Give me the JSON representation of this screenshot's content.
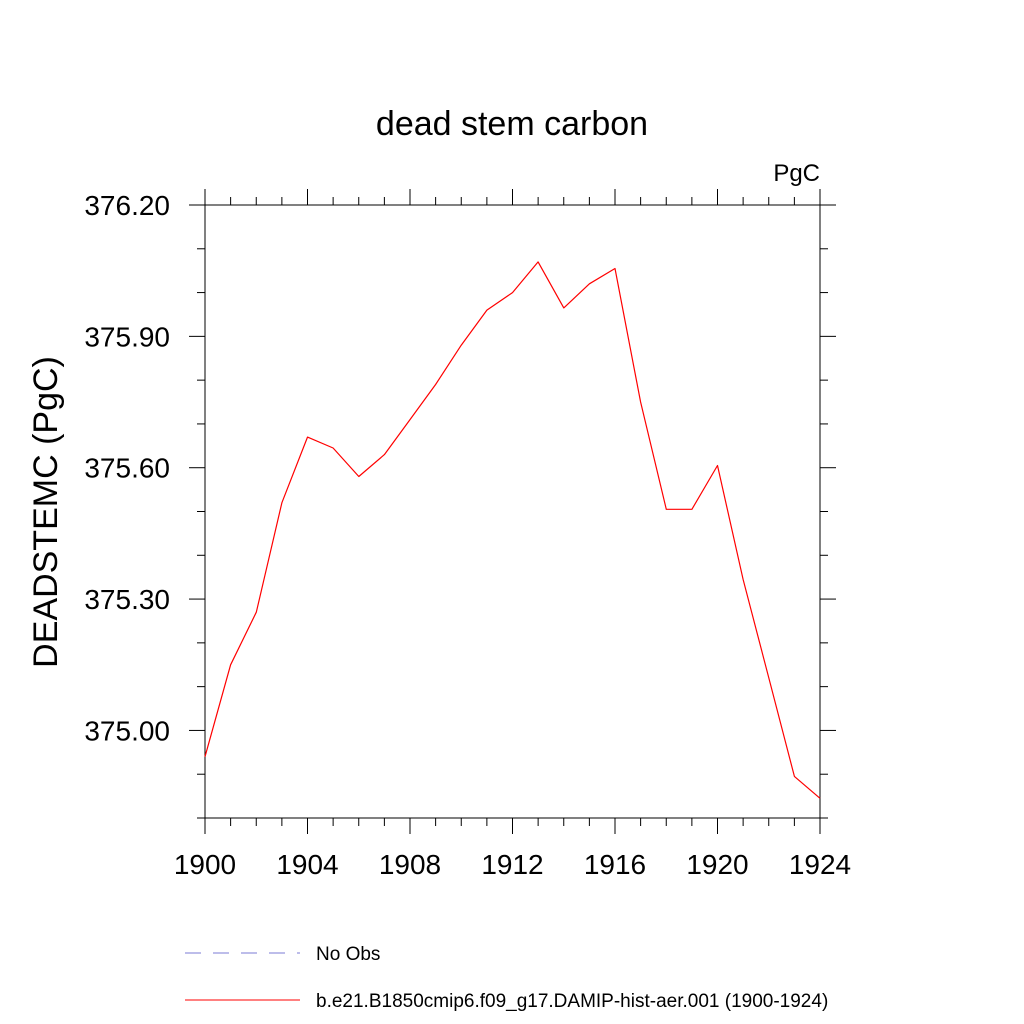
{
  "chart_data": {
    "type": "line",
    "title": "dead stem carbon",
    "units_label": "PgC",
    "ylabel": "DEADSTEMC  (PgC)",
    "xlabel": "",
    "xlim": [
      1900,
      1924
    ],
    "ylim": [
      374.8,
      376.2
    ],
    "x_ticks": [
      1900,
      1904,
      1908,
      1912,
      1916,
      1920,
      1924
    ],
    "y_ticks": [
      "375.00",
      "375.30",
      "375.60",
      "375.90",
      "376.20"
    ],
    "y_tick_values": [
      375.0,
      375.3,
      375.6,
      375.9,
      376.2
    ],
    "grid": false,
    "legend_position": "bottom",
    "x": [
      1900,
      1901,
      1902,
      1903,
      1904,
      1905,
      1906,
      1907,
      1908,
      1909,
      1910,
      1911,
      1912,
      1913,
      1914,
      1915,
      1916,
      1917,
      1918,
      1919,
      1920,
      1921,
      1922,
      1923,
      1924
    ],
    "series": [
      {
        "name": "b.e21.B1850cmip6.f09_g17.DAMIP-hist-aer.001 (1900-1924)",
        "color": "#ff0000",
        "style": "solid",
        "values": [
          374.94,
          375.15,
          375.27,
          375.52,
          375.67,
          375.645,
          375.58,
          375.63,
          375.71,
          375.79,
          375.88,
          375.96,
          376.0,
          376.07,
          375.965,
          376.02,
          376.055,
          375.75,
          375.505,
          375.505,
          375.605,
          375.345,
          375.12,
          374.895,
          374.845
        ]
      }
    ],
    "legend": [
      {
        "label": "No Obs",
        "color": "#7b7bd6",
        "style": "dashed"
      },
      {
        "label": "b.e21.B1850cmip6.f09_g17.DAMIP-hist-aer.001 (1900-1924)",
        "color": "#ff0000",
        "style": "solid"
      }
    ]
  }
}
